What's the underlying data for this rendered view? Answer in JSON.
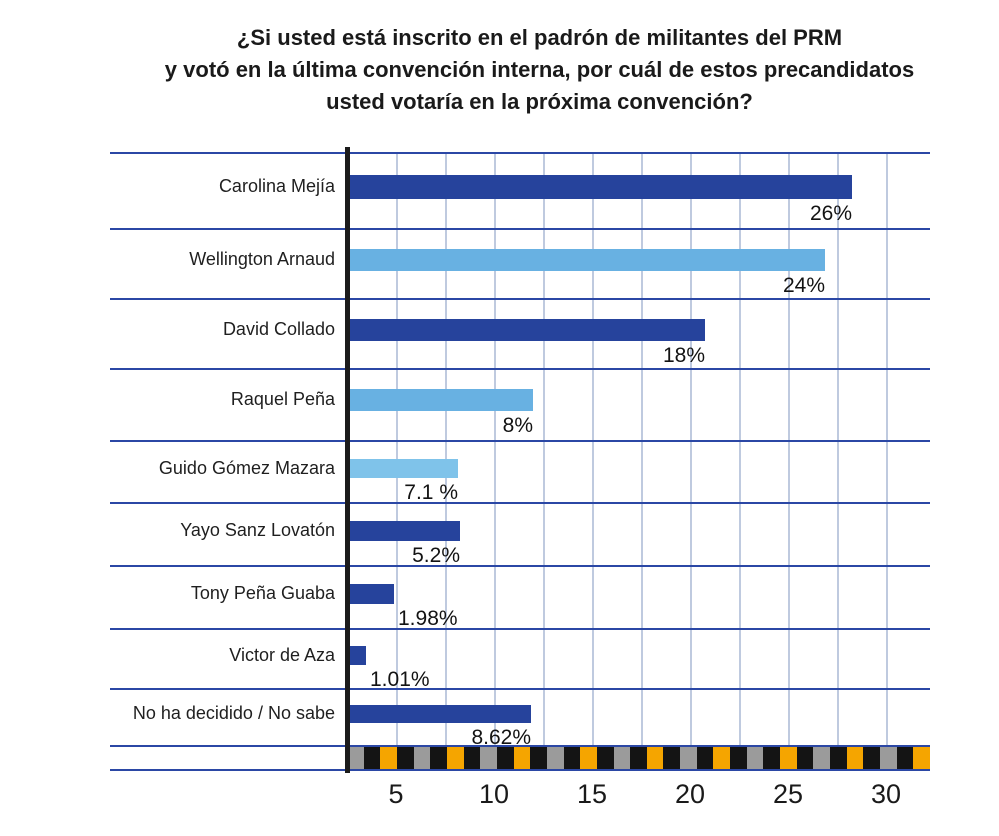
{
  "title": {
    "line1": "¿Si usted está inscrito en el padrón de militantes del PRM",
    "line2": "y votó en la última convención interna, por cuál de estos precandidatos",
    "line3": "usted votaría en la próxima convención?"
  },
  "chart_data": {
    "type": "bar",
    "orientation": "horizontal",
    "title": "¿Si usted está inscrito en el padrón de militantes del PRM y votó en la última convención interna, por cuál de estos precandidatos usted votaría en la próxima convención?",
    "categories": [
      "Carolina Mejía",
      "Wellington Arnaud",
      "David Collado",
      "Raquel Peña",
      "Guido Gómez Mazara",
      "Yayo Sanz Lovatón",
      "Tony Peña Guaba",
      "Victor de Aza",
      "No ha decidido / No sabe"
    ],
    "values": [
      26,
      24,
      18,
      8,
      7.1,
      5.2,
      1.98,
      1.01,
      8.62
    ],
    "value_labels": [
      "26%",
      "24%",
      "18%",
      "8%",
      "7.1 %",
      "5.2%",
      "1.98%",
      "1.01%",
      "8.62%"
    ],
    "bar_colors": [
      "#26439c",
      "#68b1e2",
      "#26439c",
      "#68b1e2",
      "#7fc3ea",
      "#26439c",
      "#26439c",
      "#26439c",
      "#26439c"
    ],
    "bar_display_units": [
      26.0,
      24.6,
      18.4,
      9.5,
      5.6,
      5.7,
      2.3,
      0.85,
      9.4
    ],
    "x_ticks": [
      "5",
      "10",
      "15",
      "20",
      "25",
      "30"
    ],
    "grid": true,
    "legend": "none"
  },
  "colors": {
    "dark_bar": "#26439c",
    "light_bar": "#68b1e2",
    "lighter_bar": "#7fc3ea",
    "separator": "#2b47a5",
    "gridline": "#bfcadf",
    "axis": "#1b1b1b",
    "strip_pattern": [
      "#9b9b9b",
      "#141414",
      "#f5a500",
      "#141414"
    ]
  }
}
